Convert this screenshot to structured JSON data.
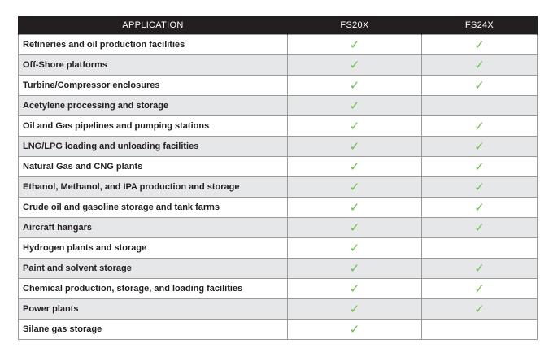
{
  "header": {
    "application": "APPLICATION",
    "fs20x": "FS20X",
    "fs24x": "FS24X"
  },
  "check_symbol": "✓",
  "check_color": "#6cc04a",
  "header_color": "#231f20",
  "shade_color": "#e6e7e8",
  "rows": [
    {
      "application": "Refineries and oil production facilities",
      "fs20x": true,
      "fs24x": true
    },
    {
      "application": "Off-Shore platforms",
      "fs20x": true,
      "fs24x": true
    },
    {
      "application": "Turbine/Compressor enclosures",
      "fs20x": true,
      "fs24x": true
    },
    {
      "application": "Acetylene processing and storage",
      "fs20x": true,
      "fs24x": false
    },
    {
      "application": "Oil and Gas pipelines and pumping stations",
      "fs20x": true,
      "fs24x": true
    },
    {
      "application": "LNG/LPG loading and unloading facilities",
      "fs20x": true,
      "fs24x": true
    },
    {
      "application": "Natural Gas and CNG plants",
      "fs20x": true,
      "fs24x": true
    },
    {
      "application": "Ethanol, Methanol, and IPA production and storage",
      "fs20x": true,
      "fs24x": true
    },
    {
      "application": "Crude oil and gasoline storage and tank farms",
      "fs20x": true,
      "fs24x": true
    },
    {
      "application": "Aircraft hangars",
      "fs20x": true,
      "fs24x": true
    },
    {
      "application": "Hydrogen plants and storage",
      "fs20x": true,
      "fs24x": false
    },
    {
      "application": "Paint and solvent storage",
      "fs20x": true,
      "fs24x": true
    },
    {
      "application": "Chemical production, storage, and loading facilities",
      "fs20x": true,
      "fs24x": true
    },
    {
      "application": "Power plants",
      "fs20x": true,
      "fs24x": true
    },
    {
      "application": "Silane gas storage",
      "fs20x": true,
      "fs24x": false
    }
  ]
}
